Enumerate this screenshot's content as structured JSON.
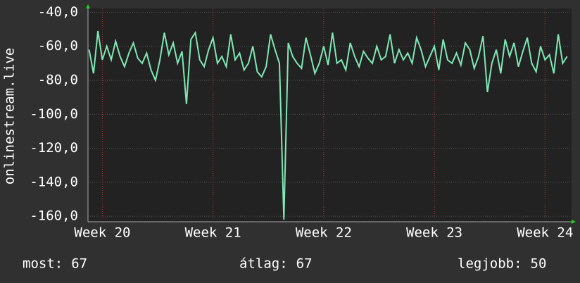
{
  "chart_data": {
    "type": "line",
    "ylabel": "onlinestream.live",
    "x": [
      19.88,
      19.92,
      19.96,
      20.0,
      20.04,
      20.08,
      20.12,
      20.16,
      20.2,
      20.24,
      20.28,
      20.32,
      20.36,
      20.4,
      20.44,
      20.48,
      20.52,
      20.56,
      20.6,
      20.64,
      20.68,
      20.72,
      20.76,
      20.8,
      20.84,
      20.88,
      20.92,
      20.96,
      21.0,
      21.04,
      21.08,
      21.12,
      21.16,
      21.2,
      21.24,
      21.28,
      21.32,
      21.36,
      21.4,
      21.44,
      21.48,
      21.52,
      21.56,
      21.6,
      21.64,
      21.68,
      21.72,
      21.76,
      21.8,
      21.84,
      21.88,
      21.92,
      21.96,
      22.0,
      22.04,
      22.08,
      22.12,
      22.16,
      22.2,
      22.24,
      22.28,
      22.32,
      22.36,
      22.4,
      22.44,
      22.48,
      22.52,
      22.56,
      22.6,
      22.64,
      22.68,
      22.72,
      22.76,
      22.8,
      22.84,
      22.88,
      22.92,
      22.96,
      23.0,
      23.04,
      23.08,
      23.12,
      23.16,
      23.2,
      23.24,
      23.28,
      23.32,
      23.36,
      23.4,
      23.44,
      23.48,
      23.52,
      23.56,
      23.6,
      23.64,
      23.68,
      23.72,
      23.76,
      23.8,
      23.84,
      23.88,
      23.92,
      23.96,
      24.0,
      24.04,
      24.08,
      24.12,
      24.16,
      24.2
    ],
    "series": [
      {
        "color": "#7fe8b4",
        "values": [
          -62,
          -76,
          -51,
          -68,
          -60,
          -68,
          -57,
          -66,
          -72,
          -64,
          -58,
          -67,
          -70,
          -64,
          -74,
          -80,
          -68,
          -52,
          -65,
          -58,
          -70,
          -63,
          -94,
          -56,
          -52,
          -68,
          -72,
          -62,
          -55,
          -70,
          -66,
          -72,
          -53,
          -68,
          -64,
          -74,
          -70,
          -60,
          -75,
          -78,
          -72,
          -53,
          -62,
          -70,
          -162,
          -58,
          -66,
          -70,
          -73,
          -55,
          -65,
          -76,
          -70,
          -60,
          -71,
          -52,
          -70,
          -68,
          -74,
          -58,
          -66,
          -72,
          -63,
          -67,
          -70,
          -60,
          -68,
          -66,
          -53,
          -70,
          -62,
          -68,
          -64,
          -70,
          -55,
          -62,
          -72,
          -66,
          -60,
          -74,
          -56,
          -68,
          -70,
          -64,
          -71,
          -58,
          -62,
          -73,
          -66,
          -54,
          -87,
          -70,
          -62,
          -76,
          -56,
          -66,
          -58,
          -72,
          -63,
          -55,
          -70,
          -75,
          -60,
          -68,
          -65,
          -76,
          -53,
          -70,
          -66
        ]
      }
    ],
    "xlim": [
      19.87,
      24.24
    ],
    "xticks": [
      {
        "value": 20,
        "label": "Week 20"
      },
      {
        "value": 21,
        "label": "Week 21"
      },
      {
        "value": 22,
        "label": "Week 22"
      },
      {
        "value": 23,
        "label": "Week 23"
      },
      {
        "value": 24,
        "label": "Week 24"
      }
    ],
    "ylim": [
      -162,
      -39
    ],
    "yticks": [
      {
        "value": -40,
        "label": "-40,0"
      },
      {
        "value": -60,
        "label": "-60,0"
      },
      {
        "value": -80,
        "label": "-80,0"
      },
      {
        "value": -100,
        "label": "-100,0"
      },
      {
        "value": -120,
        "label": "-120,0"
      },
      {
        "value": -140,
        "label": "-140,0"
      },
      {
        "value": -160,
        "label": "-160,0"
      }
    ],
    "grid": true,
    "footer": [
      {
        "label": "most:",
        "value": 67
      },
      {
        "label": "átlag:",
        "value": 67
      },
      {
        "label": "legjobb:",
        "value": 50
      }
    ]
  }
}
